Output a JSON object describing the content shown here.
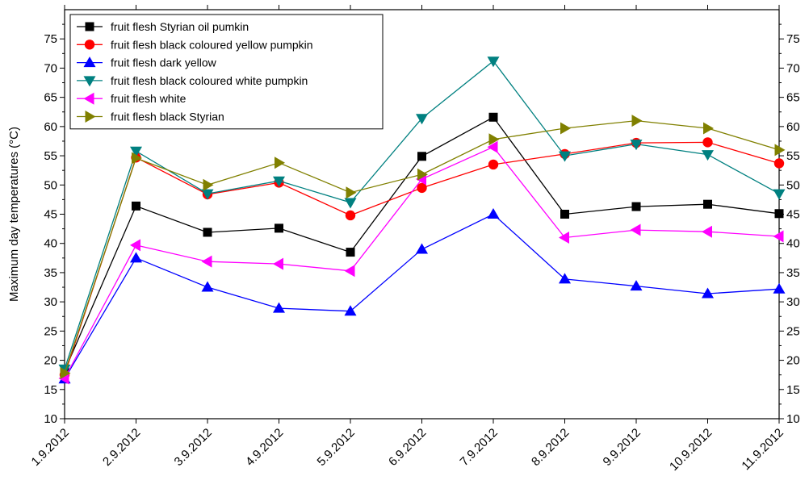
{
  "chart_data": {
    "type": "line",
    "ylabel": "Maximum day temperatures (°C)",
    "xlabel": "",
    "ylim": [
      10,
      80
    ],
    "yticks": [
      10,
      15,
      20,
      25,
      30,
      35,
      40,
      45,
      50,
      55,
      60,
      65,
      70,
      75
    ],
    "categories": [
      "1.9.2012",
      "2.9.2012",
      "3.9.2012",
      "4.9.2012",
      "5.9.2012",
      "6.9.2012",
      "7.9.2012",
      "8.9.2012",
      "9.9.2012",
      "10.9.2012",
      "11.9.2012"
    ],
    "legend_position": "top-left",
    "series": [
      {
        "name": "fruit flesh Styrian oil pumkin",
        "color": "#000000",
        "marker": "square",
        "values": [
          18.2,
          46.4,
          41.9,
          42.6,
          38.5,
          54.9,
          61.6,
          45.0,
          46.3,
          46.7,
          45.1
        ]
      },
      {
        "name": "fruit flesh black coloured yellow pumpkin",
        "color": "#ff0000",
        "marker": "circle",
        "values": [
          17.5,
          54.7,
          48.4,
          50.4,
          44.8,
          49.5,
          53.5,
          55.3,
          57.2,
          57.3,
          53.7
        ]
      },
      {
        "name": "fruit flesh dark yellow",
        "color": "#0000ff",
        "marker": "triangle-up",
        "values": [
          16.8,
          37.5,
          32.5,
          28.9,
          28.4,
          39.0,
          45.0,
          33.9,
          32.7,
          31.4,
          32.2
        ]
      },
      {
        "name": "fruit flesh black coloured white pumpkin",
        "color": "#008080",
        "marker": "triangle-down",
        "values": [
          18.5,
          55.8,
          48.5,
          50.7,
          47.0,
          61.4,
          71.2,
          55.0,
          57.0,
          55.2,
          48.5
        ]
      },
      {
        "name": "fruit flesh white",
        "color": "#ff00ff",
        "marker": "triangle-left",
        "values": [
          16.9,
          39.7,
          36.9,
          36.5,
          35.3,
          51.0,
          56.5,
          41.0,
          42.3,
          42.0,
          41.2
        ]
      },
      {
        "name": "fruit flesh black Styrian",
        "color": "#808000",
        "marker": "triangle-right",
        "values": [
          17.8,
          54.6,
          50.0,
          53.8,
          48.7,
          51.8,
          57.8,
          59.7,
          61.0,
          59.7,
          56.0
        ]
      }
    ]
  }
}
